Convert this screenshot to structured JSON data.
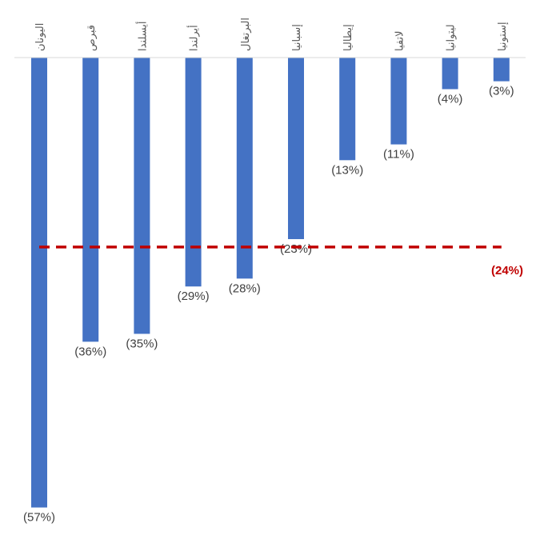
{
  "chart_data": {
    "type": "bar",
    "categories": [
      "اليونان",
      "قبرص",
      "أيسلندا",
      "أيرلندا",
      "البرتغال",
      "إسبانيا",
      "إيطاليا",
      "لاتفيا",
      "ليتوانيا",
      "إستونيا"
    ],
    "values": [
      -57,
      -36,
      -35,
      -29,
      -28,
      -23,
      -13,
      -11,
      -4,
      -3
    ],
    "data_labels": [
      "(57%)",
      "(36%)",
      "(35%)",
      "(29%)",
      "(28%)",
      "(23%)",
      "(13%)",
      "(11%)",
      "(4%)",
      "(3%)"
    ],
    "reference_line": {
      "value": -24,
      "label": "(24%)",
      "style": "dashed",
      "color": "#C00000"
    },
    "bar_color": "#4472C4",
    "ylim": [
      -57,
      0
    ],
    "grid": false,
    "legend": "none"
  }
}
